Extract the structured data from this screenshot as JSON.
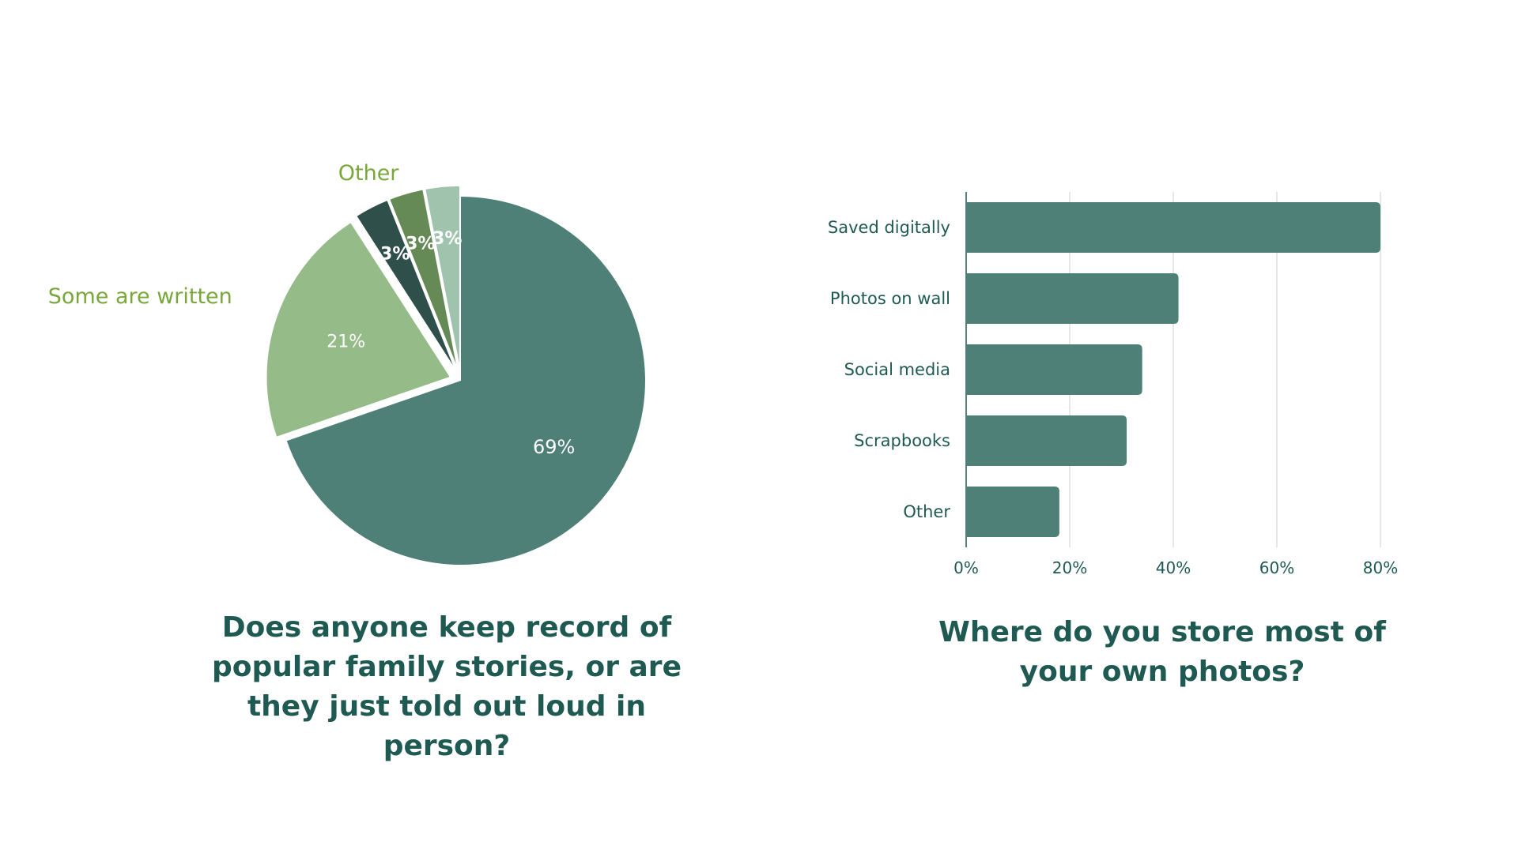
{
  "colors": {
    "primary": "#4e8077",
    "light_green": "#95bb89",
    "dark_teal": "#2e4f4a",
    "mid_green": "#668a56",
    "pale_green": "#9fc3ad",
    "callout_green": "#79a83a",
    "text_dark": "#1f5a52",
    "grid": "#cfcfcf"
  },
  "chart_data": [
    {
      "type": "pie",
      "title": "Does anyone keep record of\npopular family stories, or are\nthey just told out loud in person?",
      "slices": [
        {
          "value": 69,
          "label": "69%",
          "color": "#4e8077",
          "callout": ""
        },
        {
          "value": 21,
          "label": "21%",
          "color": "#95bb89",
          "callout": "Some are written"
        },
        {
          "value": 3,
          "label": "3%",
          "color": "#2e4f4a",
          "callout": ""
        },
        {
          "value": 3,
          "label": "3%",
          "color": "#668a56",
          "callout": ""
        },
        {
          "value": 3,
          "label": "3%",
          "color": "#9fc3ad",
          "callout": ""
        }
      ],
      "group_callouts": [
        {
          "text": "Other"
        }
      ]
    },
    {
      "type": "bar",
      "orientation": "horizontal",
      "title": "Where do you store most of\nyour own photos?",
      "categories": [
        "Saved digitally",
        "Photos on wall",
        "Social media",
        "Scrapbooks",
        "Other"
      ],
      "values": [
        80,
        41,
        34,
        31,
        18
      ],
      "xlim": [
        0,
        80
      ],
      "xticks": [
        "0%",
        "20%",
        "40%",
        "60%",
        "80%"
      ],
      "grid": true,
      "color": "#4e8077"
    }
  ]
}
